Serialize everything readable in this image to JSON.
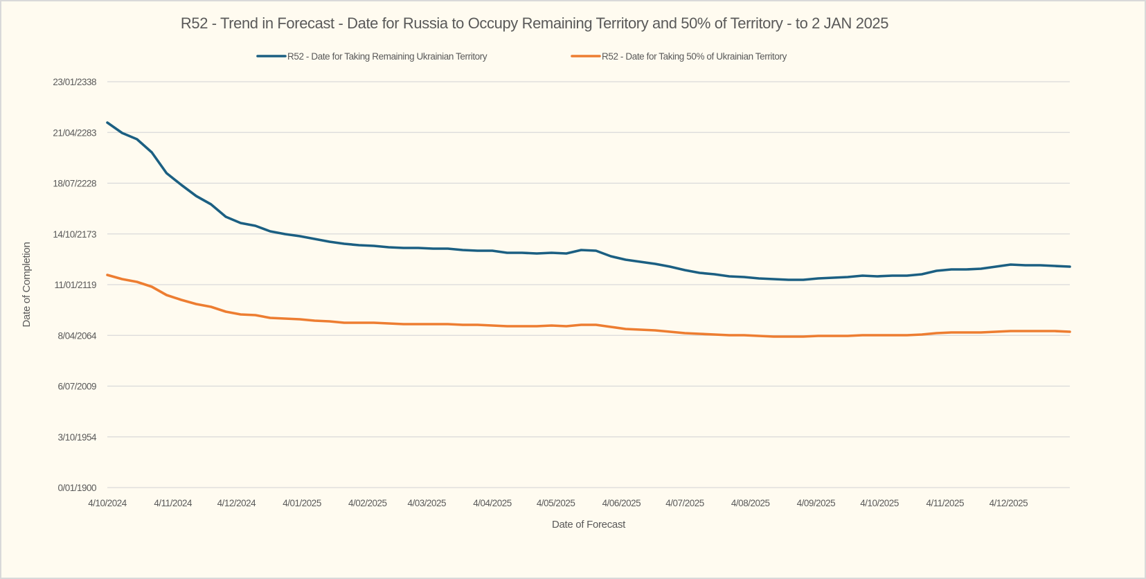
{
  "chart_data": {
    "type": "line",
    "title": "R52 - Trend in Forecast - Date for Russia to Occupy Remaining Territory and 50% of Territory - to 2 JAN 2025",
    "xlabel": "Date of Forecast",
    "ylabel": "Date of Completion",
    "x_start_date": "4/10/2024",
    "x_interval_days": 7,
    "x_range_days": [
      0,
      455
    ],
    "x_ticks": [
      {
        "label": "4/10/2024",
        "day": 0
      },
      {
        "label": "4/11/2024",
        "day": 31
      },
      {
        "label": "4/12/2024",
        "day": 61
      },
      {
        "label": "4/01/2025",
        "day": 92
      },
      {
        "label": "4/02/2025",
        "day": 123
      },
      {
        "label": "4/03/2025",
        "day": 151
      },
      {
        "label": "4/04/2025",
        "day": 182
      },
      {
        "label": "4/05/2025",
        "day": 212
      },
      {
        "label": "4/06/2025",
        "day": 243
      },
      {
        "label": "4/07/2025",
        "day": 273
      },
      {
        "label": "4/08/2025",
        "day": 304
      },
      {
        "label": "4/09/2025",
        "day": 335
      },
      {
        "label": "4/10/2025",
        "day": 365
      },
      {
        "label": "4/11/2025",
        "day": 396
      },
      {
        "label": "4/12/2025",
        "day": 426
      }
    ],
    "y_unit": "Excel date serial (days since 0/01/1900)",
    "ylim": [
      0,
      160000
    ],
    "y_ticks": [
      {
        "label": "0/01/1900",
        "value": 0
      },
      {
        "label": "3/10/1954",
        "value": 20000
      },
      {
        "label": "6/07/2009",
        "value": 40000
      },
      {
        "label": "8/04/2064",
        "value": 60000
      },
      {
        "label": "11/01/2119",
        "value": 80000
      },
      {
        "label": "14/10/2173",
        "value": 100000
      },
      {
        "label": "18/07/2228",
        "value": 120000
      },
      {
        "label": "21/04/2283",
        "value": 140000
      },
      {
        "label": "23/01/2338",
        "value": 160000
      }
    ],
    "grid": true,
    "legend_position": "top",
    "series": [
      {
        "name": "R52 - Date for Taking Remaining Ukrainian Territory",
        "color": "#1b5f82",
        "values": [
          143892,
          139796,
          137339,
          132151,
          123960,
          119318,
          114950,
          111673,
          106759,
          104301,
          103209,
          101025,
          99933,
          99114,
          98021,
          96929,
          96110,
          95564,
          95291,
          94745,
          94472,
          94472,
          94199,
          94199,
          93653,
          93380,
          93380,
          92561,
          92561,
          92288,
          92561,
          92288,
          93653,
          93380,
          91195,
          89830,
          89011,
          88192,
          87100,
          85735,
          84642,
          84096,
          83277,
          83004,
          82458,
          82185,
          81912,
          81912,
          82458,
          82731,
          83004,
          83550,
          83277,
          83550,
          83550,
          84096,
          85462,
          86008,
          86008,
          86281,
          87100,
          87919,
          87646,
          87646,
          87373,
          87100
        ]
      },
      {
        "name": "R52 - Date for Taking  50% of Ukrainian Territory",
        "color": "#ed7d31",
        "values": [
          83823,
          82185,
          81093,
          79182,
          75905,
          73994,
          72356,
          71263,
          69352,
          68260,
          67987,
          66895,
          66622,
          66349,
          65803,
          65530,
          64984,
          64984,
          64984,
          64710,
          64437,
          64437,
          64437,
          64437,
          64164,
          64164,
          63891,
          63618,
          63618,
          63618,
          63891,
          63618,
          64164,
          64164,
          63345,
          62526,
          62253,
          61980,
          61434,
          60888,
          60615,
          60342,
          60069,
          60069,
          59796,
          59523,
          59523,
          59523,
          59796,
          59796,
          59796,
          60069,
          60069,
          60069,
          60069,
          60342,
          60888,
          61161,
          61161,
          61161,
          61434,
          61707,
          61707,
          61707,
          61707,
          61434
        ]
      }
    ]
  }
}
